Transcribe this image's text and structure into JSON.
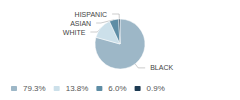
{
  "chart_data": {
    "type": "pie",
    "categories": [
      "BLACK",
      "WHITE",
      "ASIAN",
      "HISPANIC"
    ],
    "values": [
      79.3,
      13.8,
      6.0,
      0.9
    ],
    "value_labels": [
      "79.3%",
      "13.8%",
      "6.0%",
      "0.9%"
    ],
    "colors": [
      "#9db7c7",
      "#cce0ea",
      "#5e8da5",
      "#1d3a52"
    ],
    "legend": "lower left"
  }
}
